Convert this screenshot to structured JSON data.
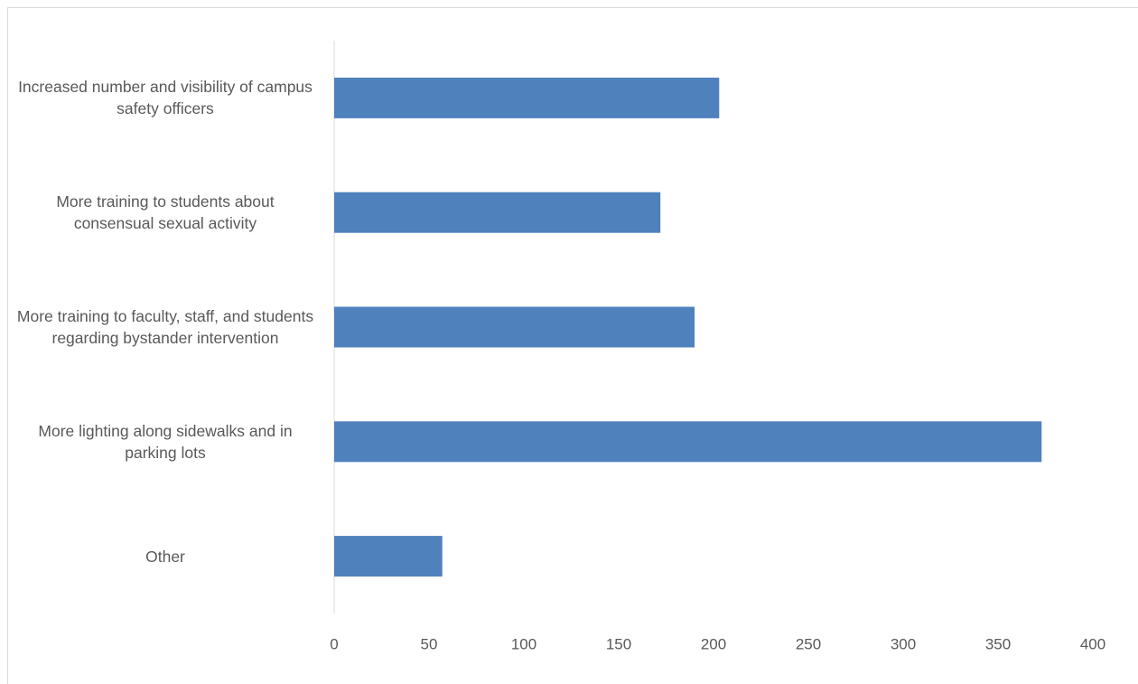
{
  "chart_data": {
    "type": "bar",
    "orientation": "horizontal",
    "categories": [
      "Increased number and visibility of campus safety officers",
      "More training to students about consensual sexual activity",
      "More training to faculty, staff, and students regarding bystander intervention",
      "More lighting along sidewalks and in parking lots",
      "Other"
    ],
    "values": [
      203,
      172,
      190,
      373,
      57
    ],
    "color": "#4f81bd",
    "xlim": [
      0,
      400
    ],
    "xticks": [
      0,
      50,
      100,
      150,
      200,
      250,
      300,
      350,
      400
    ],
    "grid": false
  }
}
